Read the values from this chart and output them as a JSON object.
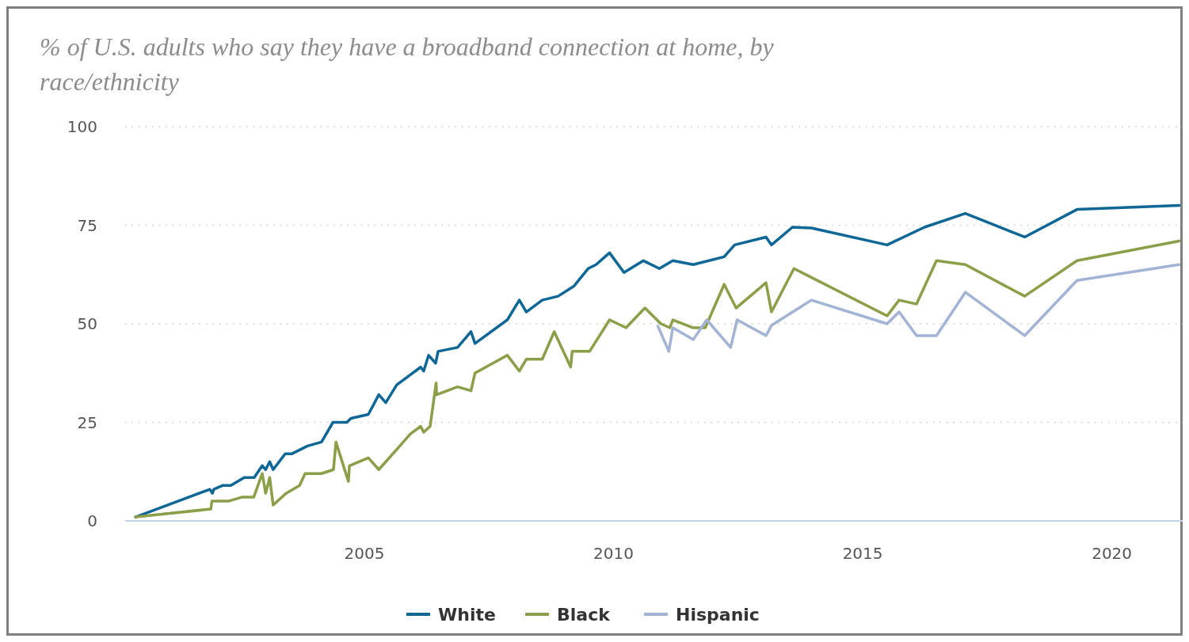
{
  "chart_data": {
    "type": "line",
    "title": "% of U.S. adults who say they have a broadband connection at home, by race/ethnicity",
    "xlim": [
      2000.2,
      2021.5
    ],
    "xticks": [
      2005,
      2010,
      2015,
      2020
    ],
    "ylim": [
      0,
      100
    ],
    "yticks": [
      0,
      25,
      50,
      75,
      100
    ],
    "grid": "y",
    "legend": "bottom",
    "line_style": "solid",
    "marker": "none",
    "series": [
      {
        "name": "White",
        "color": "#0f6796",
        "x": [
          2000.41,
          2001.9,
          2001.95,
          2001.98,
          2002.16,
          2002.32,
          2002.59,
          2002.79,
          2002.95,
          2003.02,
          2003.1,
          2003.17,
          2003.41,
          2003.54,
          2003.7,
          2003.86,
          2004.14,
          2004.37,
          2004.65,
          2004.73,
          2005.08,
          2005.29,
          2005.43,
          2005.65,
          2006.13,
          2006.19,
          2006.29,
          2006.43,
          2006.48,
          2006.87,
          2007.14,
          2007.22,
          2007.87,
          2008.11,
          2008.25,
          2008.57,
          2008.89,
          2009.21,
          2009.49,
          2009.65,
          2009.92,
          2010.21,
          2010.6,
          2010.92,
          2011.19,
          2011.6,
          2012.22,
          2012.43,
          2013.06,
          2013.17,
          2013.59,
          2013.97,
          2015.49,
          2016.24,
          2017.06,
          2018.25,
          2019.3,
          2021.35
        ],
        "values": [
          1,
          8,
          7,
          8,
          9,
          9,
          11,
          11,
          14,
          13,
          15,
          13,
          17,
          17,
          18,
          19,
          20,
          25,
          25,
          26,
          27,
          32,
          30,
          34.5,
          39,
          38,
          42,
          40,
          43,
          44,
          48,
          45,
          51,
          56,
          53,
          56,
          57,
          59.6,
          64,
          65,
          68,
          63,
          66,
          64,
          66,
          65,
          67,
          70,
          72,
          70,
          74.5,
          74.3,
          70,
          74.5,
          78,
          72,
          79,
          80
        ]
      },
      {
        "name": "Black",
        "color": "#8b9e48",
        "x": [
          2000.41,
          2001.92,
          2001.94,
          2002.27,
          2002.54,
          2002.78,
          2002.95,
          2003.02,
          2003.1,
          2003.17,
          2003.43,
          2003.7,
          2003.81,
          2004.14,
          2004.38,
          2004.43,
          2004.68,
          2004.7,
          2005.08,
          2005.29,
          2005.92,
          2006.13,
          2006.19,
          2006.32,
          2006.44,
          2006.45,
          2006.87,
          2007.14,
          2007.22,
          2007.87,
          2008.11,
          2008.25,
          2008.57,
          2008.81,
          2009.14,
          2009.17,
          2009.52,
          2009.92,
          2010.25,
          2010.63,
          2010.95,
          2011.13,
          2011.19,
          2011.59,
          2011.84,
          2012.22,
          2012.46,
          2013.06,
          2013.17,
          2013.62,
          2015.49,
          2015.73,
          2016.08,
          2016.48,
          2017.06,
          2018.25,
          2019.3,
          2021.35
        ],
        "values": [
          1,
          3,
          5,
          5,
          6,
          6,
          12,
          7,
          11,
          4,
          7,
          9,
          12,
          12,
          13,
          20,
          10,
          14,
          16,
          13,
          22,
          24,
          22.5,
          24,
          35,
          32,
          34,
          33,
          37.5,
          42,
          38,
          41,
          41,
          48,
          39,
          43,
          43,
          51,
          49,
          54,
          50,
          49,
          51,
          49,
          49,
          60,
          54,
          60.4,
          53,
          64,
          52,
          56,
          55,
          66,
          65,
          57,
          66,
          71
        ]
      },
      {
        "name": "Hispanic",
        "color": "#a3b3d3",
        "x": [
          2010.89,
          2011.11,
          2011.19,
          2011.6,
          2011.87,
          2012.35,
          2012.48,
          2013.06,
          2013.17,
          2013.97,
          2015.49,
          2015.73,
          2016.08,
          2016.48,
          2017.06,
          2018.25,
          2019.3,
          2021.35
        ],
        "values": [
          49.4,
          43,
          49,
          46,
          51,
          44,
          51,
          47,
          49.6,
          56,
          50,
          53,
          47,
          47,
          58,
          47,
          61,
          65
        ]
      }
    ]
  }
}
